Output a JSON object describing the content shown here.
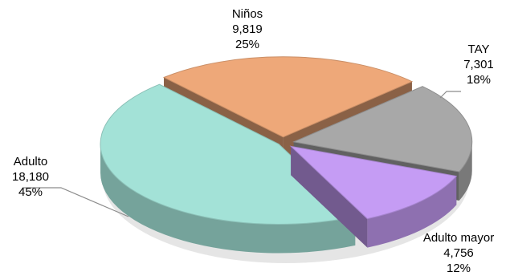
{
  "chart_data": {
    "type": "pie",
    "title": "",
    "slices": [
      {
        "name": "Niños",
        "value": 9819,
        "value_label": "9,819",
        "percent_label": "25%",
        "color": "#eea879"
      },
      {
        "name": "TAY",
        "value": 7301,
        "value_label": "7,301",
        "percent_label": "18%",
        "color": "#a8a8a8"
      },
      {
        "name": "Adulto mayor",
        "value": 4756,
        "value_label": "4,756",
        "percent_label": "12%",
        "color": "#c59cf4"
      },
      {
        "name": "Adulto",
        "value": 18180,
        "value_label": "18,180",
        "percent_label": "45%",
        "color": "#a3e2d7"
      }
    ],
    "style": "3d-exploded"
  }
}
